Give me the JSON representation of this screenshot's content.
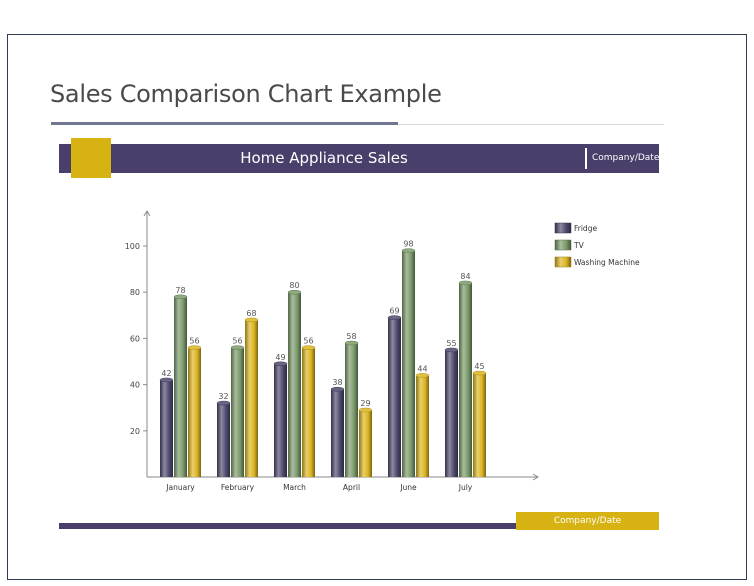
{
  "slide": {
    "title": "Sales Comparison Chart Example",
    "banner_title": "Home Appliance Sales",
    "banner_company": "Company/Date",
    "footer_company": "Company/Date"
  },
  "colors": {
    "accent_purple": "#4a3f6a",
    "accent_gold": "#d6b313",
    "fridge": "#4e4a6e",
    "tv": "#7b9a6a",
    "washing_machine": "#dcb520"
  },
  "chart_data": {
    "type": "bar",
    "title": "Home Appliance Sales",
    "categories": [
      "January",
      "February",
      "March",
      "April",
      "June",
      "July"
    ],
    "series": [
      {
        "name": "Fridge",
        "values": [
          42,
          32,
          49,
          38,
          69,
          55
        ]
      },
      {
        "name": "TV",
        "values": [
          78,
          56,
          80,
          58,
          98,
          84
        ]
      },
      {
        "name": "Washing Machine",
        "values": [
          56,
          68,
          56,
          29,
          44,
          45
        ]
      }
    ],
    "yticks": [
      20,
      40,
      60,
      80,
      100
    ],
    "ylim": [
      0,
      110
    ],
    "legend_position": "top-right",
    "grid": false
  }
}
